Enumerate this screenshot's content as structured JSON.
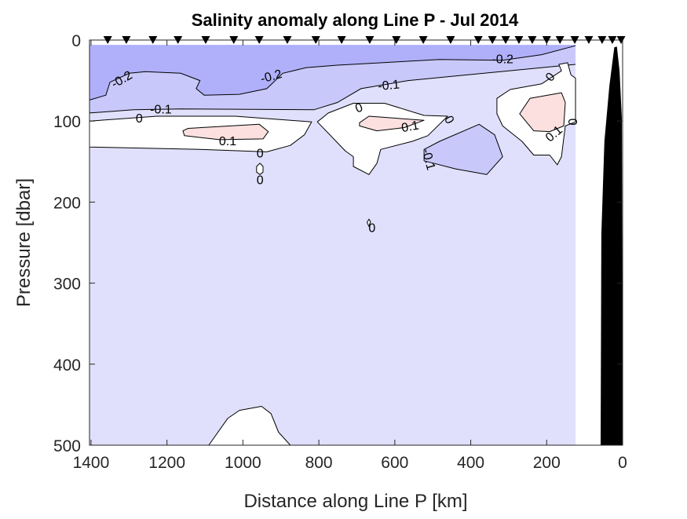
{
  "chart_data": {
    "type": "contour",
    "title": "Salinity anomaly along Line P - Jul 2014",
    "xlabel": "Distance along Line P [km]",
    "ylabel": "Pressure [dbar]",
    "xlim": [
      0,
      1404
    ],
    "ylim": [
      0,
      500
    ],
    "x_reversed": true,
    "y_reversed": true,
    "xticks": [
      1400,
      1200,
      1000,
      800,
      600,
      400,
      200,
      0
    ],
    "xtick_labels": [
      "1400",
      "1200",
      "1000",
      "800",
      "600",
      "400",
      "200",
      "0"
    ],
    "yticks": [
      0,
      100,
      200,
      300,
      400,
      500
    ],
    "ytick_labels": [
      "0",
      "100",
      "200",
      "300",
      "400",
      "500"
    ],
    "data_extent_km": [
      124,
      1404
    ],
    "data_top_dbar": 6,
    "levels": [
      -0.2,
      -0.1,
      0,
      0.1
    ],
    "colors": {
      "lt_m02": "#b0b0fa",
      "m02_m01": "#c8c8fa",
      "m01_0": "#e0e0fc",
      "0_01": "#ffffff",
      "gt_01": "#fce0e0",
      "bathymetry": "#000000"
    },
    "stations_km": [
      1356,
      1307,
      1237,
      1171,
      1098,
      1024,
      957,
      883,
      808,
      740,
      666,
      596,
      525,
      453,
      380,
      343,
      308,
      273,
      238,
      200,
      165,
      126,
      89,
      54,
      27,
      4
    ],
    "bands": [
      {
        "name": "m02_m01-band",
        "color": "m02_m01",
        "line": [
          [
            124,
            30
          ],
          [
            565,
            50
          ],
          [
            689,
            60
          ],
          [
            751,
            77
          ],
          [
            813,
            86
          ],
          [
            1164,
            85
          ],
          [
            1288,
            86
          ],
          [
            1404,
            90
          ]
        ]
      },
      {
        "name": "lt_m02-band",
        "color": "lt_m02",
        "line": [
          [
            124,
            7
          ],
          [
            213,
            18
          ],
          [
            316,
            25
          ],
          [
            482,
            24
          ],
          [
            751,
            31
          ],
          [
            833,
            34
          ],
          [
            895,
            41
          ],
          [
            937,
            60
          ],
          [
            1009,
            67
          ],
          [
            1102,
            68
          ],
          [
            1123,
            60
          ],
          [
            1113,
            50
          ],
          [
            1164,
            41
          ],
          [
            1257,
            39
          ],
          [
            1299,
            41
          ],
          [
            1350,
            52
          ],
          [
            1361,
            68
          ],
          [
            1404,
            74
          ]
        ]
      }
    ],
    "regions": [
      {
        "name": "zero-region-west",
        "color": "0_01",
        "points": [
          [
            1404,
            100
          ],
          [
            1226,
            94
          ],
          [
            1020,
            94
          ],
          [
            819,
            101
          ],
          [
            838,
            117
          ],
          [
            875,
            130
          ],
          [
            937,
            138
          ],
          [
            1113,
            135
          ],
          [
            1404,
            132
          ]
        ]
      },
      {
        "name": "positive-core-west",
        "color": "gt_01",
        "points": [
          [
            1158,
            112
          ],
          [
            1144,
            109
          ],
          [
            957,
            104
          ],
          [
            933,
            113
          ],
          [
            947,
            122
          ],
          [
            1061,
            123
          ],
          [
            1154,
            118
          ]
        ]
      },
      {
        "name": "zero-patch-1000km",
        "color": "0_01",
        "points": [
          [
            964,
            156
          ],
          [
            955,
            152
          ],
          [
            947,
            156
          ],
          [
            947,
            163
          ],
          [
            955,
            166
          ],
          [
            964,
            163
          ]
        ]
      },
      {
        "name": "zero-region-central",
        "color": "0_01",
        "points": [
          [
            804,
            101
          ],
          [
            775,
            90
          ],
          [
            709,
            78
          ],
          [
            627,
            78
          ],
          [
            523,
            93
          ],
          [
            461,
            94
          ],
          [
            513,
            118
          ],
          [
            554,
            125
          ],
          [
            637,
            135
          ],
          [
            647,
            152
          ],
          [
            668,
            166
          ],
          [
            709,
            156
          ],
          [
            709,
            144
          ],
          [
            730,
            137
          ]
        ]
      },
      {
        "name": "positive-core-central",
        "color": "gt_01",
        "points": [
          [
            693,
            102
          ],
          [
            668,
            94
          ],
          [
            523,
            99
          ],
          [
            575,
            108
          ],
          [
            647,
            112
          ],
          [
            693,
            106
          ]
        ]
      },
      {
        "name": "zero-patch-670km",
        "color": "0_01",
        "points": [
          [
            664,
            224
          ],
          [
            668,
            221
          ],
          [
            673,
            225
          ],
          [
            668,
            230
          ]
        ]
      },
      {
        "name": "negative-core-east",
        "color": "m02_m01",
        "points": [
          [
            523,
            135
          ],
          [
            482,
            125
          ],
          [
            378,
            104
          ],
          [
            337,
            117
          ],
          [
            316,
            144
          ],
          [
            358,
            166
          ],
          [
            440,
            159
          ],
          [
            523,
            149
          ]
        ]
      },
      {
        "name": "zero-region-east",
        "color": "0_01",
        "points": [
          [
            331,
            72
          ],
          [
            296,
            61
          ],
          [
            213,
            54
          ],
          [
            161,
            38
          ],
          [
            168,
            30
          ],
          [
            145,
            28
          ],
          [
            136,
            43
          ],
          [
            124,
            47
          ],
          [
            124,
            101
          ],
          [
            151,
            106
          ],
          [
            161,
            144
          ],
          [
            172,
            154
          ],
          [
            192,
            142
          ],
          [
            234,
            142
          ],
          [
            265,
            125
          ],
          [
            316,
            106
          ],
          [
            331,
            91
          ]
        ]
      },
      {
        "name": "positive-core-east",
        "color": "gt_01",
        "points": [
          [
            271,
            91
          ],
          [
            244,
            72
          ],
          [
            161,
            65
          ],
          [
            151,
            77
          ],
          [
            155,
            106
          ],
          [
            192,
            113
          ],
          [
            234,
            112
          ]
        ]
      },
      {
        "name": "zero-region-deep",
        "color": "0_01",
        "points": [
          [
            1090,
            500
          ],
          [
            1040,
            467
          ],
          [
            1009,
            457
          ],
          [
            951,
            452
          ],
          [
            926,
            461
          ],
          [
            906,
            484
          ],
          [
            875,
            500
          ]
        ]
      }
    ],
    "bathymetry": [
      [
        58,
        500
      ],
      [
        56,
        240
      ],
      [
        48,
        125
      ],
      [
        35,
        57
      ],
      [
        22,
        9
      ],
      [
        15,
        8
      ],
      [
        8,
        38
      ],
      [
        2,
        96
      ],
      [
        0,
        500
      ]
    ],
    "contour_labels": [
      {
        "text": "-0.2",
        "km": 1320,
        "dbar": 48,
        "angle": -30
      },
      {
        "text": "-0.2",
        "km": 926,
        "dbar": 44,
        "angle": -15
      },
      {
        "text": "-0.2",
        "km": 316,
        "dbar": 23,
        "angle": 0
      },
      {
        "text": "-0.1",
        "km": 616,
        "dbar": 55,
        "angle": -5
      },
      {
        "text": "-0.1",
        "km": 1216,
        "dbar": 85,
        "angle": 0
      },
      {
        "text": "0",
        "km": 1273,
        "dbar": 96,
        "angle": 0
      },
      {
        "text": "0.1",
        "km": 1040,
        "dbar": 124,
        "angle": 0
      },
      {
        "text": "0",
        "km": 955,
        "dbar": 139,
        "angle": 0
      },
      {
        "text": "0",
        "km": 955,
        "dbar": 172,
        "angle": 0
      },
      {
        "text": "0",
        "km": 695,
        "dbar": 83,
        "angle": -20
      },
      {
        "text": "0.1",
        "km": 560,
        "dbar": 106,
        "angle": -10
      },
      {
        "text": "0",
        "km": 455,
        "dbar": 98,
        "angle": 60
      },
      {
        "text": "-0.1",
        "km": 509,
        "dbar": 147,
        "angle": 75
      },
      {
        "text": "0",
        "km": 192,
        "dbar": 45,
        "angle": -50
      },
      {
        "text": "0.1",
        "km": 182,
        "dbar": 115,
        "angle": -40
      },
      {
        "text": "0",
        "km": 130,
        "dbar": 101,
        "angle": 90
      },
      {
        "text": "0",
        "km": 660,
        "dbar": 231,
        "angle": 0
      }
    ]
  }
}
